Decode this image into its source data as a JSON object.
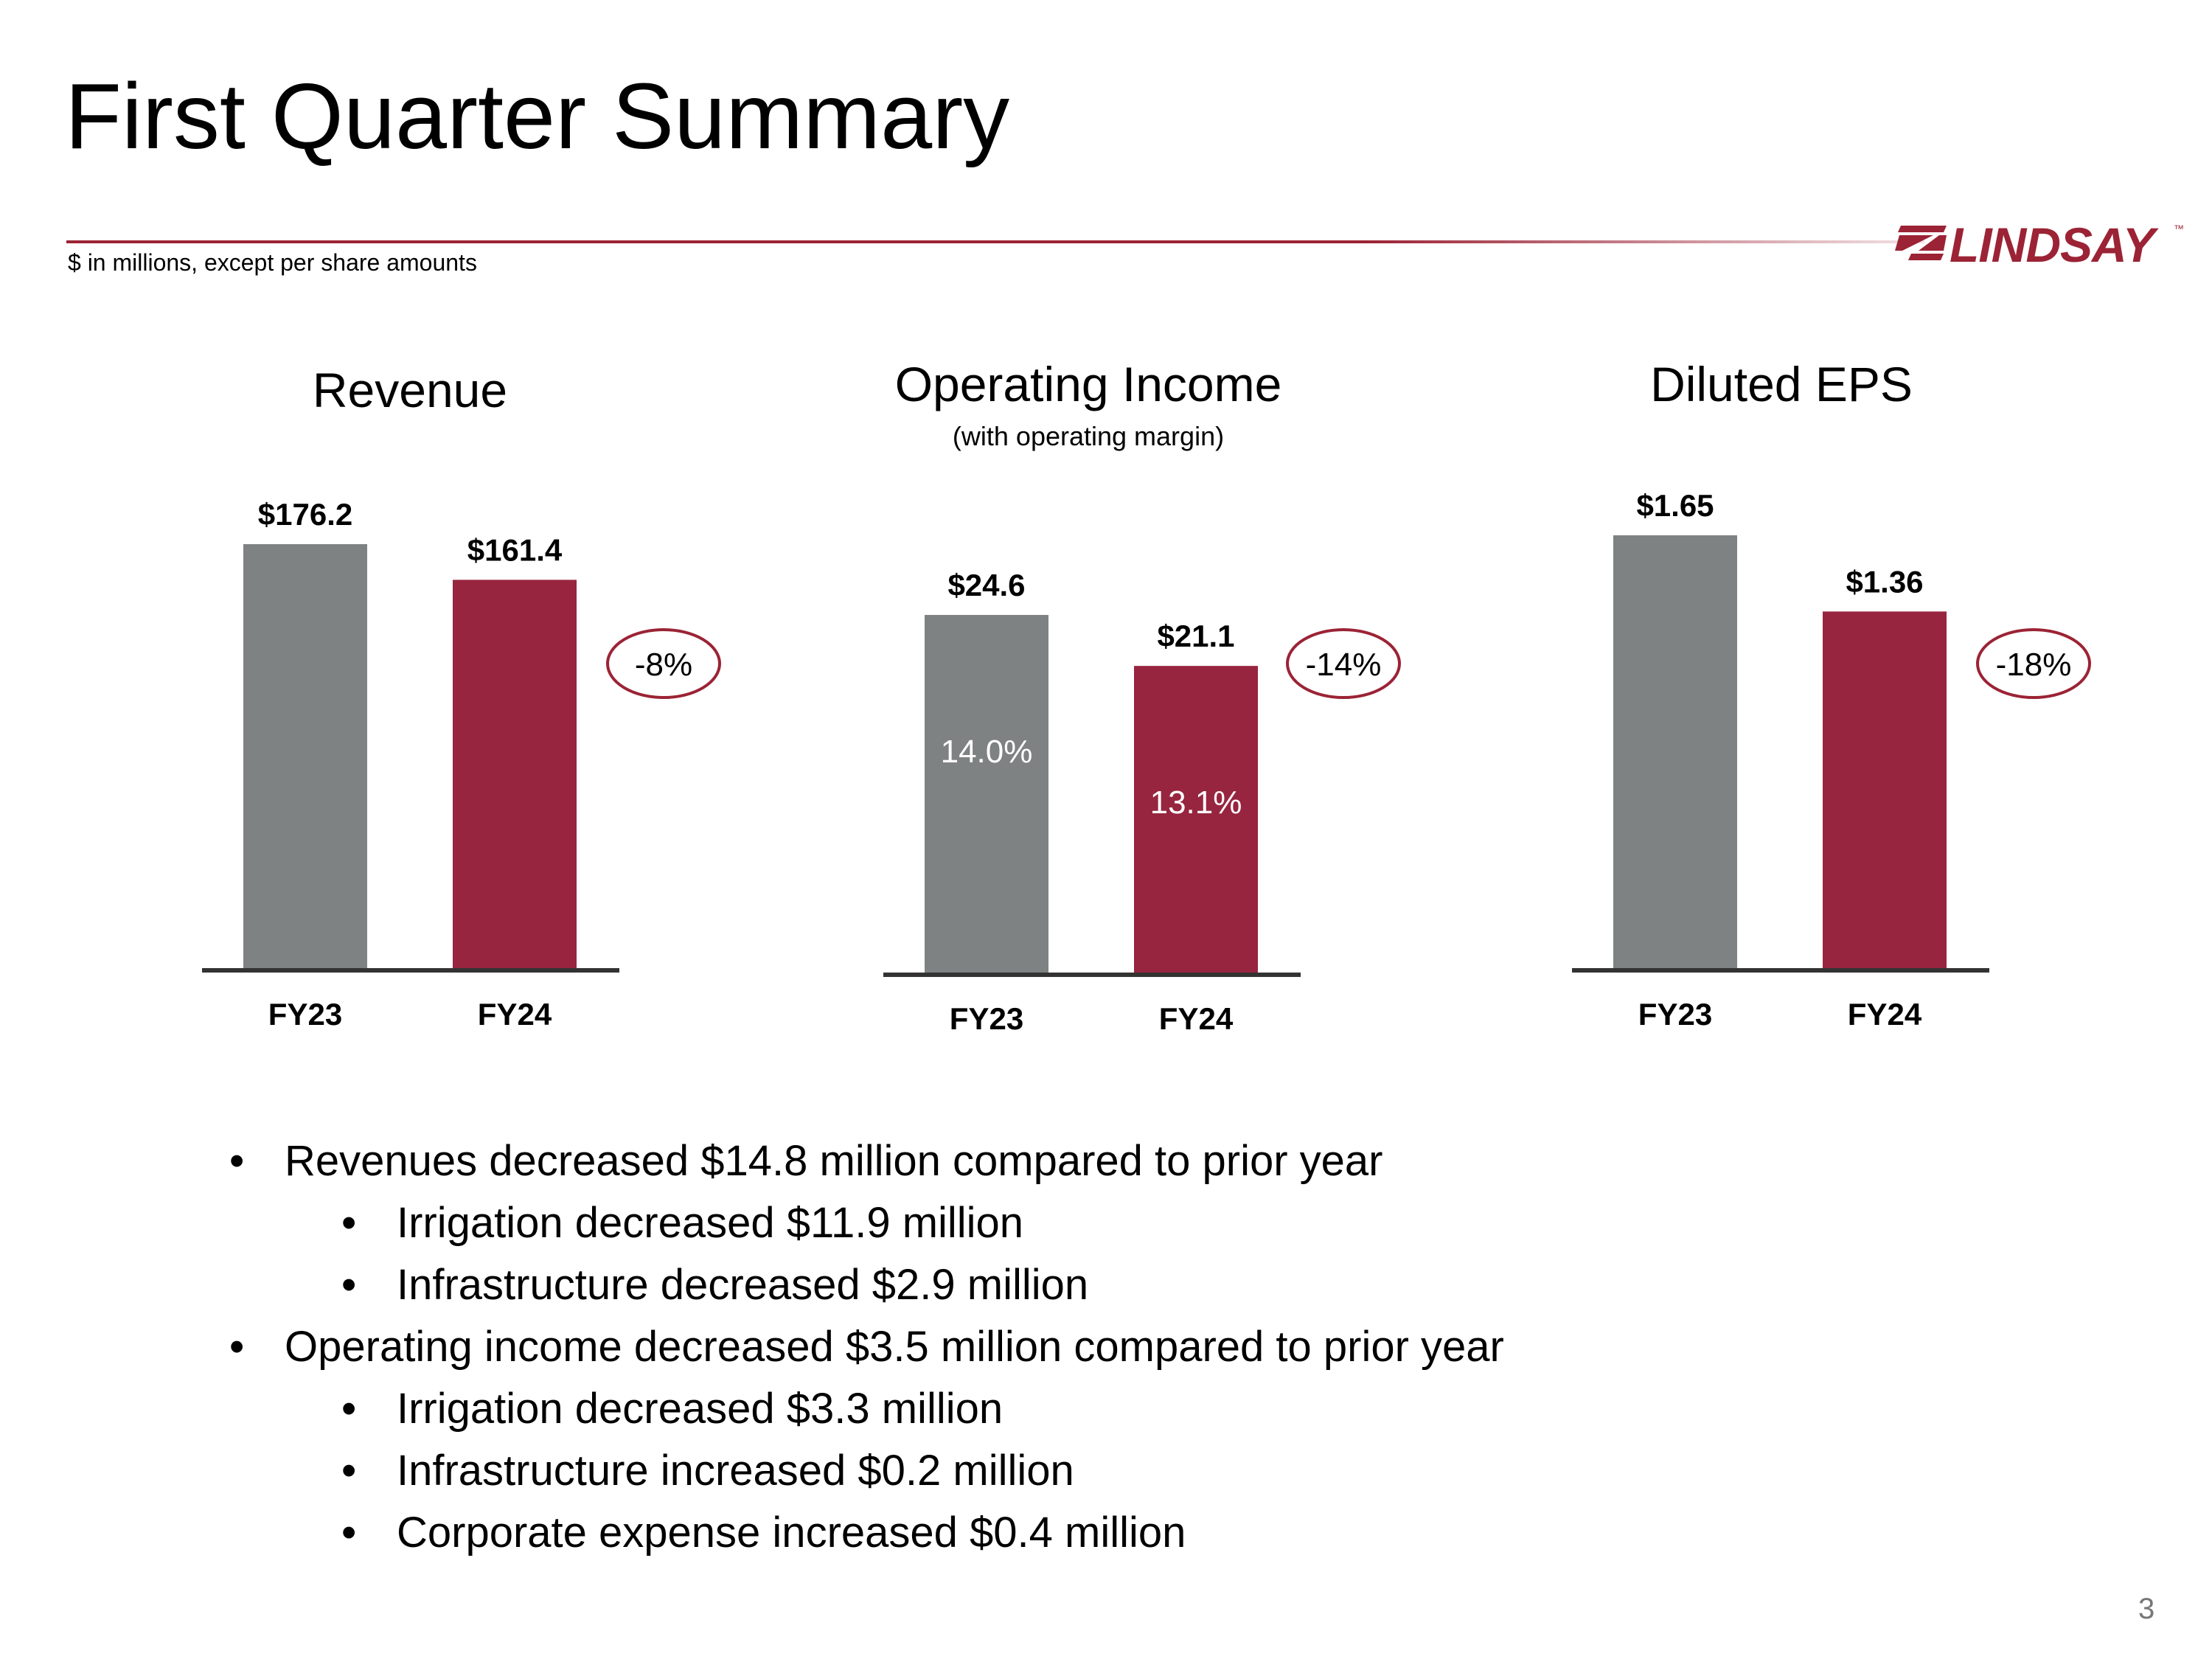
{
  "slide": {
    "title": "First Quarter Summary",
    "subtitle": "$ in millions, except per share amounts",
    "logo_text": "LINDSAY",
    "logo_tm": "™",
    "page_number": "3"
  },
  "colors": {
    "fy23": "#7f8282",
    "fy24": "#97253f",
    "accent": "#9b2335",
    "axis": "#333333"
  },
  "chart_data": [
    {
      "type": "bar",
      "title": "Revenue",
      "subtitle": "",
      "categories": [
        "FY23",
        "FY24"
      ],
      "values": [
        176.2,
        161.4
      ],
      "value_labels": [
        "$176.2",
        "$161.4"
      ],
      "inner_labels": [],
      "change_label": "-8%"
    },
    {
      "type": "bar",
      "title": "Operating Income",
      "subtitle": "(with operating margin)",
      "categories": [
        "FY23",
        "FY24"
      ],
      "values": [
        24.6,
        21.1
      ],
      "value_labels": [
        "$24.6",
        "$21.1"
      ],
      "inner_labels": [
        "14.0%",
        "13.1%"
      ],
      "change_label": "-14%"
    },
    {
      "type": "bar",
      "title": "Diluted EPS",
      "subtitle": "",
      "categories": [
        "FY23",
        "FY24"
      ],
      "values": [
        1.65,
        1.36
      ],
      "value_labels": [
        "$1.65",
        "$1.36"
      ],
      "inner_labels": [],
      "change_label": "-18%"
    }
  ],
  "bullets": [
    {
      "level": 1,
      "text": "Revenues decreased $14.8 million compared to prior year"
    },
    {
      "level": 2,
      "text": "Irrigation decreased $11.9 million"
    },
    {
      "level": 2,
      "text": "Infrastructure decreased $2.9 million"
    },
    {
      "level": 1,
      "text": "Operating income decreased $3.5 million compared to prior year"
    },
    {
      "level": 2,
      "text": "Irrigation decreased $3.3 million"
    },
    {
      "level": 2,
      "text": "Infrastructure increased $0.2 million"
    },
    {
      "level": 2,
      "text": "Corporate expense increased $0.4 million"
    }
  ],
  "bullet_symbol": "•"
}
